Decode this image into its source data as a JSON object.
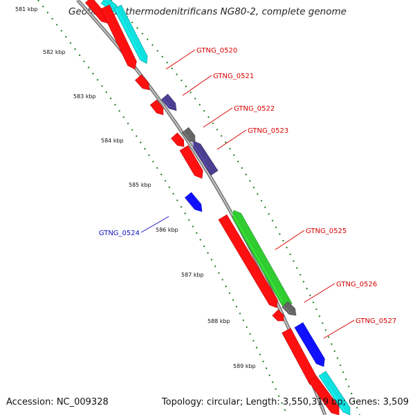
{
  "title": "Geobacillus thermodenitrificans NG80-2, complete genome",
  "footer": {
    "accession": "Accession: NC_009328",
    "summary": "Topology: circular; Length: 3,550,319 bp; Genes: 3,509"
  },
  "colors": {
    "backbone": "#888888",
    "tick": "#1a7a1a",
    "label_red": "#d80000",
    "label_blue": "#1010c0",
    "gene_red": "#ff1010",
    "gene_cyan": "#10e0e0",
    "gene_purple": "#4a3f90",
    "gene_gray": "#666666",
    "gene_green": "#30cc30",
    "gene_blue": "#1010ff"
  },
  "scale": {
    "ticks": [
      {
        "label": "581 kbp"
      },
      {
        "label": "582 kbp"
      },
      {
        "label": "583 kbp"
      },
      {
        "label": "584 kbp"
      },
      {
        "label": "585 kbp"
      },
      {
        "label": "586 kbp"
      },
      {
        "label": "587 kbp"
      },
      {
        "label": "588 kbp"
      },
      {
        "label": "589 kbp"
      }
    ]
  },
  "gene_labels": [
    {
      "name": "GTNG_0520",
      "color": "label_red"
    },
    {
      "name": "GTNG_0521",
      "color": "label_red"
    },
    {
      "name": "GTNG_0522",
      "color": "label_red"
    },
    {
      "name": "GTNG_0523",
      "color": "label_red"
    },
    {
      "name": "GTNG_0524",
      "color": "label_blue"
    },
    {
      "name": "GTNG_0525",
      "color": "label_red"
    },
    {
      "name": "GTNG_0526",
      "color": "label_red"
    },
    {
      "name": "GTNG_0527",
      "color": "label_red"
    }
  ],
  "features": [
    {
      "id": "f1",
      "color": "gene_red"
    },
    {
      "id": "f2",
      "color": "gene_cyan"
    },
    {
      "id": "f3",
      "color": "gene_red"
    },
    {
      "id": "f4",
      "color": "gene_cyan"
    },
    {
      "id": "f5",
      "color": "gene_red"
    },
    {
      "id": "f6",
      "color": "gene_red"
    },
    {
      "id": "f7",
      "color": "gene_purple"
    },
    {
      "id": "f8",
      "color": "gene_red"
    },
    {
      "id": "f9",
      "color": "gene_gray"
    },
    {
      "id": "f10",
      "color": "gene_red"
    },
    {
      "id": "f11",
      "color": "gene_purple"
    },
    {
      "id": "f12",
      "color": "gene_blue"
    },
    {
      "id": "f13",
      "color": "gene_red"
    },
    {
      "id": "f14",
      "color": "gene_green"
    },
    {
      "id": "f15",
      "color": "gene_gray"
    },
    {
      "id": "f16",
      "color": "gene_red"
    },
    {
      "id": "f17",
      "color": "gene_blue"
    },
    {
      "id": "f18",
      "color": "gene_red"
    },
    {
      "id": "f19",
      "color": "gene_red"
    },
    {
      "id": "f20",
      "color": "gene_cyan"
    }
  ]
}
